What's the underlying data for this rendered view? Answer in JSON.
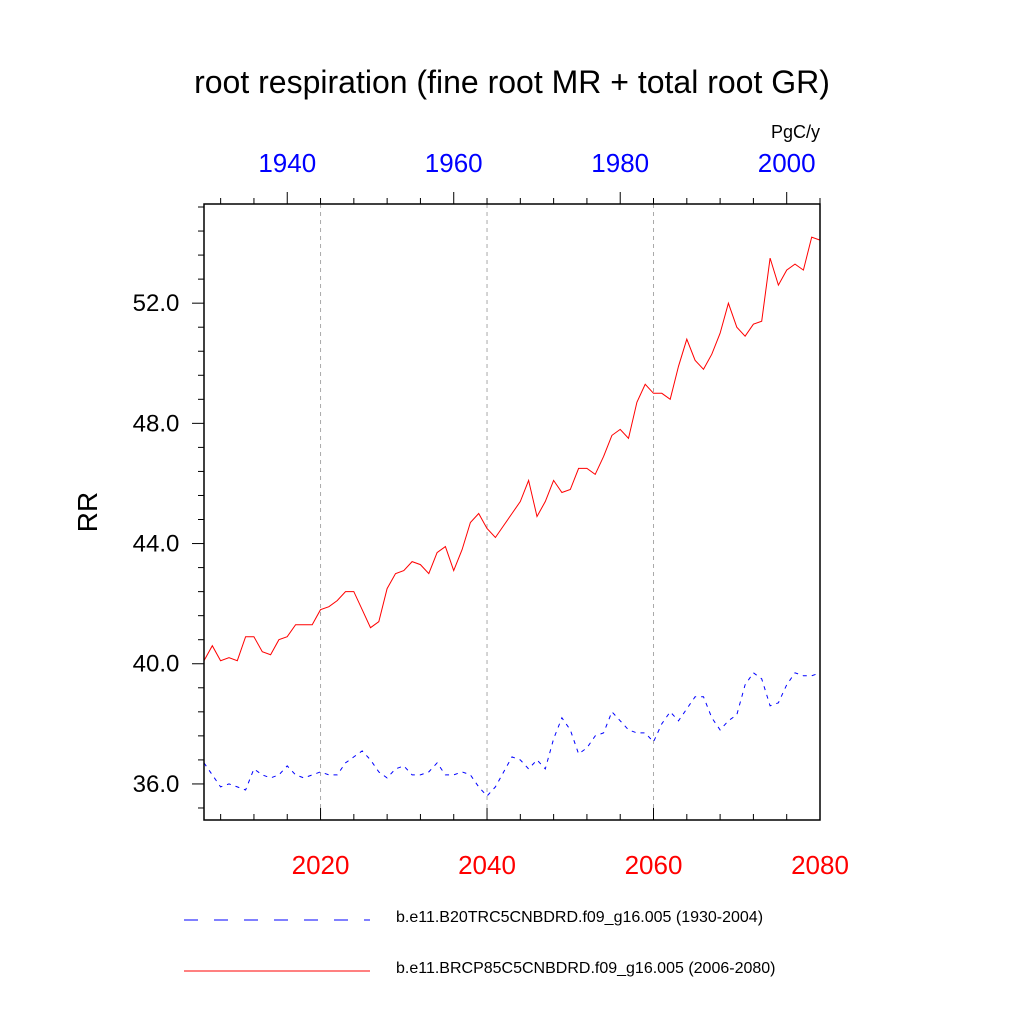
{
  "title": "root respiration (fine root MR + total root GR)",
  "units": "PgC/y",
  "colors": {
    "historical": "#0000ff",
    "future": "#ff0000",
    "grid": "#aaaaaa",
    "axis": "#000000"
  },
  "legend": [
    {
      "label": "b.e11.B20TRC5CNBDRD.f09_g16.005 (1930-2004)",
      "style": "dashed",
      "color": "#0000ff"
    },
    {
      "label": "b.e11.BRCP85C5CNBDRD.f09_g16.005 (2006-2080)",
      "style": "solid",
      "color": "#ff0000"
    }
  ],
  "chart_data": {
    "type": "line",
    "title": "root respiration (fine root MR + total root GR)",
    "ylabel": "RR",
    "units": "PgC/y",
    "ylim": [
      34.8,
      55.3
    ],
    "yticks": [
      36.0,
      40.0,
      44.0,
      48.0,
      52.0
    ],
    "ytick_labels": [
      "36.0",
      "40.0",
      "44.0",
      "48.0",
      "52.0"
    ],
    "bottom_axis": {
      "range": [
        2006,
        2080
      ],
      "ticks": [
        2020,
        2040,
        2060,
        2080
      ],
      "tick_labels": [
        "2020",
        "2040",
        "2060",
        "2080"
      ],
      "color": "#ff0000"
    },
    "top_axis": {
      "range": [
        1930,
        2004
      ],
      "ticks": [
        1940,
        1960,
        1980,
        2000
      ],
      "tick_labels": [
        "1940",
        "1960",
        "1980",
        "2000"
      ],
      "color": "#0000ff"
    },
    "grid": "vertical dashed at bottom-axis ticks",
    "series": [
      {
        "name": "b.e11.B20TRC5CNBDRD.f09_g16.005 (1930-2004)",
        "axis": "top",
        "start": 1930,
        "style": "dashed",
        "color": "#0000ff",
        "values": [
          36.7,
          36.3,
          35.9,
          36.0,
          35.9,
          35.8,
          36.5,
          36.3,
          36.2,
          36.3,
          36.6,
          36.3,
          36.2,
          36.3,
          36.4,
          36.3,
          36.3,
          36.7,
          36.9,
          37.1,
          36.8,
          36.4,
          36.2,
          36.5,
          36.6,
          36.3,
          36.3,
          36.4,
          36.7,
          36.3,
          36.3,
          36.4,
          36.3,
          35.9,
          35.6,
          35.9,
          36.4,
          36.9,
          36.8,
          36.5,
          36.8,
          36.5,
          37.5,
          38.2,
          37.8,
          37.0,
          37.2,
          37.6,
          37.7,
          38.4,
          38.1,
          37.8,
          37.7,
          37.7,
          37.4,
          38.0,
          38.4,
          38.1,
          38.5,
          38.9,
          38.9,
          38.2,
          37.8,
          38.1,
          38.3,
          39.3,
          39.7,
          39.5,
          38.6,
          38.7,
          39.3,
          39.7,
          39.6,
          39.6,
          39.7
        ]
      },
      {
        "name": "b.e11.BRCP85C5CNBDRD.f09_g16.005 (2006-2080)",
        "axis": "bottom",
        "start": 2006,
        "style": "solid",
        "color": "#ff0000",
        "values": [
          40.1,
          40.6,
          40.1,
          40.2,
          40.1,
          40.9,
          40.9,
          40.4,
          40.3,
          40.8,
          40.9,
          41.3,
          41.3,
          41.3,
          41.8,
          41.9,
          42.1,
          42.4,
          42.4,
          41.8,
          41.2,
          41.4,
          42.5,
          43.0,
          43.1,
          43.4,
          43.3,
          43.0,
          43.7,
          43.9,
          43.1,
          43.8,
          44.7,
          45.0,
          44.5,
          44.2,
          44.6,
          45.0,
          45.4,
          46.1,
          44.9,
          45.4,
          46.1,
          45.7,
          45.8,
          46.5,
          46.5,
          46.3,
          46.9,
          47.6,
          47.8,
          47.5,
          48.7,
          49.3,
          49.0,
          49.0,
          48.8,
          49.9,
          50.8,
          50.1,
          49.8,
          50.3,
          51.0,
          52.0,
          51.2,
          50.9,
          51.3,
          51.4,
          53.5,
          52.6,
          53.1,
          53.3,
          53.1,
          54.2,
          54.1
        ]
      }
    ]
  }
}
